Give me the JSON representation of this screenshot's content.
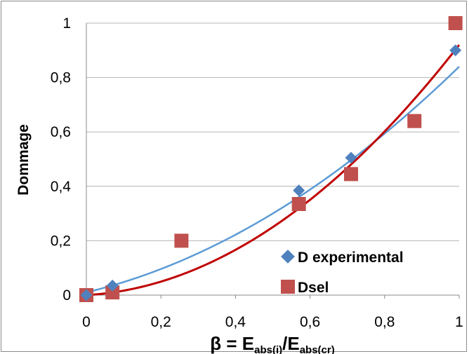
{
  "chart_data": {
    "type": "scatter",
    "title": "",
    "xlabel": "β = E_abs(i)/E_abs(cr)",
    "xlabel_parts": {
      "main": "β = E",
      "sub1": "abs(i)",
      "slash": "/E",
      "sub2": "abs(cr)"
    },
    "ylabel": "Dommage",
    "xlim": [
      0,
      1
    ],
    "ylim": [
      0,
      1
    ],
    "x_ticks": [
      "0",
      "0,2",
      "0,4",
      "0,6",
      "0,8",
      "1"
    ],
    "y_ticks": [
      "0",
      "0,2",
      "0,4",
      "0,6",
      "0,8",
      "1"
    ],
    "grid": "horizontal",
    "legend_position": "bottom-right",
    "series": [
      {
        "name": "D experimental",
        "marker": "diamond",
        "color": "#4f81bd",
        "x": [
          0,
          0.07,
          0.57,
          0.71,
          0.99
        ],
        "y": [
          0,
          0.035,
          0.385,
          0.505,
          0.9
        ],
        "trendline": {
          "type": "polynomial",
          "color": "#5b9bd5",
          "coef": [
            0.01,
            0.33,
            0.5
          ]
        }
      },
      {
        "name": "Dsel",
        "marker": "square",
        "color": "#c0504d",
        "x": [
          0,
          0.07,
          0.255,
          0.57,
          0.71,
          0.88,
          0.99
        ],
        "y": [
          0,
          0.01,
          0.2,
          0.335,
          0.445,
          0.64,
          1.0
        ],
        "trendline": {
          "type": "polynomial",
          "color": "#c00000",
          "coef": [
            0,
            0.08,
            0.84
          ]
        }
      }
    ]
  }
}
